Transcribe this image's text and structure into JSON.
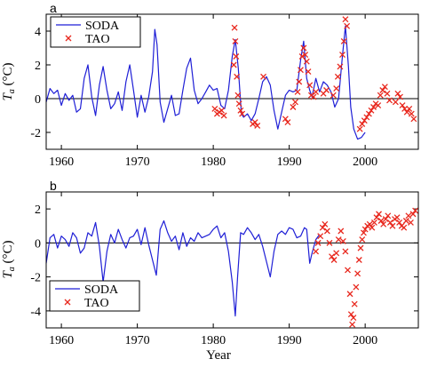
{
  "xlabel": "Year",
  "colors": {
    "soda": "#1f1fd6",
    "tao": "#e8281e"
  },
  "chart_data": [
    {
      "type": "line",
      "panel_label": "a",
      "ylabel_main": "T",
      "ylabel_sub": "a",
      "ylabel_unit": " (°C)",
      "xlim": [
        1958,
        2007
      ],
      "ylim": [
        -3,
        5
      ],
      "xticks": [
        1960,
        1970,
        1980,
        1990,
        2000
      ],
      "yticks": [
        -2,
        0,
        2,
        4
      ],
      "legend_position": "top-left",
      "series": [
        {
          "name": "SODA",
          "style": "line",
          "x": [
            1958.0,
            1958.5,
            1959.0,
            1959.5,
            1960.0,
            1960.5,
            1961.0,
            1961.5,
            1962.0,
            1962.5,
            1963.0,
            1963.5,
            1964.0,
            1964.5,
            1965.0,
            1965.5,
            1966.0,
            1966.5,
            1967.0,
            1967.5,
            1968.0,
            1968.5,
            1969.0,
            1969.5,
            1970.0,
            1970.5,
            1971.0,
            1971.5,
            1972.0,
            1972.3,
            1972.6,
            1973.0,
            1973.5,
            1974.0,
            1974.5,
            1975.0,
            1975.5,
            1976.0,
            1976.5,
            1977.0,
            1977.5,
            1978.0,
            1978.5,
            1979.0,
            1979.5,
            1980.0,
            1980.5,
            1981.0,
            1981.5,
            1982.0,
            1982.5,
            1982.9,
            1983.3,
            1983.7,
            1984.0,
            1984.5,
            1985.0,
            1985.5,
            1986.0,
            1986.5,
            1987.0,
            1987.5,
            1988.0,
            1988.5,
            1989.0,
            1989.5,
            1990.0,
            1990.5,
            1991.0,
            1991.5,
            1991.9,
            1992.3,
            1992.7,
            1993.0,
            1993.5,
            1994.0,
            1994.5,
            1995.0,
            1995.5,
            1996.0,
            1996.5,
            1997.0,
            1997.4,
            1997.8,
            1998.1,
            1998.5,
            1999.0,
            1999.5,
            2000.0
          ],
          "values": [
            -0.2,
            0.6,
            0.3,
            0.5,
            -0.4,
            0.3,
            -0.1,
            0.2,
            -0.8,
            -0.6,
            1.2,
            2.0,
            0.1,
            -1.0,
            0.8,
            1.9,
            0.5,
            -0.6,
            -0.3,
            0.4,
            -0.7,
            1.0,
            2.0,
            0.5,
            -1.1,
            0.2,
            -0.8,
            0.1,
            1.6,
            4.1,
            3.2,
            -0.2,
            -1.4,
            -0.6,
            0.2,
            -1.0,
            -0.9,
            0.5,
            1.8,
            2.4,
            0.5,
            -0.3,
            0.0,
            0.4,
            0.8,
            0.5,
            0.6,
            -0.4,
            -0.6,
            0.5,
            2.5,
            3.5,
            1.8,
            -0.9,
            -1.1,
            -0.9,
            -1.3,
            -0.9,
            0.0,
            1.0,
            1.3,
            0.8,
            -0.7,
            -1.8,
            -0.8,
            0.2,
            0.5,
            0.4,
            0.5,
            2.3,
            3.4,
            1.2,
            0.5,
            0.1,
            1.2,
            0.4,
            1.0,
            0.8,
            0.4,
            -0.5,
            0.0,
            2.5,
            4.3,
            1.9,
            -0.5,
            -1.8,
            -2.4,
            -2.3,
            -2.0
          ]
        },
        {
          "name": "TAO",
          "style": "marker",
          "x": [
            1980.2,
            1980.5,
            1980.8,
            1981.1,
            1981.4,
            1982.7,
            1982.8,
            1982.9,
            1983.0,
            1983.1,
            1983.25,
            1983.4,
            1983.6,
            1983.8,
            1985.2,
            1985.5,
            1985.8,
            1986.6,
            1989.5,
            1989.8,
            1990.5,
            1990.8,
            1991.1,
            1991.3,
            1991.5,
            1991.7,
            1991.9,
            1992.1,
            1992.3,
            1992.5,
            1992.7,
            1992.9,
            1993.2,
            1993.5,
            1994.5,
            1994.9,
            1995.8,
            1996.2,
            1996.4,
            1996.7,
            1997.0,
            1997.2,
            1997.4,
            1997.6,
            1999.3,
            1999.6,
            1999.9,
            2000.2,
            2000.5,
            2000.8,
            2001.1,
            2001.4,
            2001.7,
            2002.0,
            2002.3,
            2002.6,
            2002.9,
            2003.2,
            2004.0,
            2004.3,
            2004.6,
            2004.9,
            2005.2,
            2005.5,
            2005.8,
            2006.1,
            2006.4
          ],
          "values": [
            -0.6,
            -0.9,
            -0.8,
            -0.7,
            -1.0,
            2.0,
            4.2,
            3.4,
            2.5,
            1.3,
            0.2,
            -0.3,
            -0.7,
            -0.9,
            -1.5,
            -1.4,
            -1.6,
            1.3,
            -1.2,
            -1.4,
            -0.5,
            -0.2,
            0.4,
            1.0,
            1.7,
            2.5,
            3.0,
            2.6,
            2.2,
            1.6,
            0.8,
            0.2,
            0.1,
            0.4,
            0.3,
            0.5,
            0.2,
            0.6,
            1.3,
            1.9,
            2.6,
            3.4,
            4.7,
            4.3,
            -1.8,
            -1.5,
            -1.3,
            -1.1,
            -0.9,
            -0.7,
            -0.5,
            -0.3,
            -0.4,
            0.2,
            0.5,
            0.7,
            0.3,
            -0.1,
            -0.2,
            0.3,
            0.1,
            -0.4,
            -0.6,
            -0.8,
            -0.6,
            -0.9,
            -1.2
          ]
        }
      ]
    },
    {
      "type": "line",
      "panel_label": "b",
      "ylabel_main": "T",
      "ylabel_sub": "a",
      "ylabel_unit": " (°C)",
      "xlim": [
        1958,
        2007
      ],
      "ylim": [
        -5,
        3
      ],
      "xticks": [
        1960,
        1970,
        1980,
        1990,
        2000
      ],
      "yticks": [
        -4,
        -2,
        0,
        2
      ],
      "legend_position": "bottom-left",
      "series": [
        {
          "name": "SODA",
          "style": "line",
          "x": [
            1958.0,
            1958.5,
            1959.0,
            1959.5,
            1960.0,
            1960.5,
            1961.0,
            1961.5,
            1962.0,
            1962.5,
            1963.0,
            1963.5,
            1964.0,
            1964.5,
            1965.0,
            1965.5,
            1966.0,
            1966.5,
            1967.0,
            1967.5,
            1968.0,
            1968.5,
            1969.0,
            1969.5,
            1970.0,
            1970.5,
            1971.0,
            1971.5,
            1972.0,
            1972.5,
            1973.0,
            1973.5,
            1974.0,
            1974.5,
            1975.0,
            1975.5,
            1976.0,
            1976.5,
            1977.0,
            1977.5,
            1978.0,
            1978.5,
            1979.0,
            1979.5,
            1980.0,
            1980.5,
            1981.0,
            1981.5,
            1982.0,
            1982.5,
            1982.9,
            1983.2,
            1983.6,
            1984.0,
            1984.5,
            1985.0,
            1985.5,
            1986.0,
            1986.5,
            1987.0,
            1987.5,
            1988.0,
            1988.5,
            1989.0,
            1989.5,
            1990.0,
            1990.5,
            1991.0,
            1991.5,
            1992.0,
            1992.3,
            1992.7,
            1993.0,
            1993.5,
            1994.0
          ],
          "values": [
            -1.2,
            0.3,
            0.5,
            -0.3,
            0.4,
            0.2,
            -0.2,
            0.6,
            0.3,
            -0.6,
            -0.3,
            0.6,
            0.4,
            1.2,
            -0.2,
            -2.3,
            -0.5,
            0.5,
            0.0,
            0.8,
            0.2,
            -0.3,
            0.3,
            0.4,
            0.8,
            -0.1,
            0.9,
            -0.1,
            -1.0,
            -1.9,
            0.8,
            1.3,
            0.6,
            0.1,
            0.4,
            -0.4,
            0.6,
            -0.2,
            0.3,
            0.1,
            0.6,
            0.3,
            0.4,
            0.5,
            0.8,
            1.0,
            0.3,
            0.6,
            -0.5,
            -2.3,
            -4.3,
            -2.0,
            0.6,
            0.5,
            0.9,
            0.6,
            0.2,
            0.5,
            -0.2,
            -1.1,
            -2.0,
            -0.5,
            0.5,
            0.7,
            0.5,
            0.9,
            0.8,
            0.3,
            0.4,
            0.9,
            0.8,
            -1.2,
            -0.6,
            0.2,
            0.5
          ]
        },
        {
          "name": "TAO",
          "style": "marker",
          "x": [
            1993.5,
            1993.8,
            1994.1,
            1994.4,
            1994.7,
            1995.0,
            1995.3,
            1995.6,
            1995.9,
            1996.2,
            1996.5,
            1996.8,
            1997.1,
            1997.4,
            1997.7,
            1998.0,
            1998.15,
            1998.3,
            1998.45,
            1998.6,
            1998.8,
            1999.0,
            1999.2,
            1999.4,
            1999.6,
            1999.8,
            2000.0,
            2000.3,
            2000.6,
            2000.9,
            2001.2,
            2001.5,
            2001.8,
            2002.1,
            2002.4,
            2002.7,
            2003.0,
            2003.3,
            2003.6,
            2003.9,
            2004.2,
            2004.5,
            2004.8,
            2005.1,
            2005.4,
            2005.7,
            2006.0,
            2006.3,
            2006.6
          ],
          "values": [
            -0.5,
            0.0,
            0.4,
            0.9,
            1.1,
            0.7,
            0.0,
            -0.8,
            -1.0,
            -0.6,
            0.2,
            0.7,
            0.1,
            -0.5,
            -1.6,
            -3.0,
            -4.2,
            -4.8,
            -4.4,
            -3.6,
            -2.6,
            -1.8,
            -1.0,
            -0.3,
            0.2,
            0.6,
            0.8,
            1.0,
            1.1,
            0.9,
            1.2,
            1.5,
            1.7,
            1.3,
            1.1,
            1.4,
            1.6,
            1.2,
            1.0,
            1.4,
            1.5,
            1.2,
            1.0,
            0.9,
            1.3,
            1.6,
            1.2,
            1.7,
            1.9
          ]
        }
      ]
    }
  ]
}
